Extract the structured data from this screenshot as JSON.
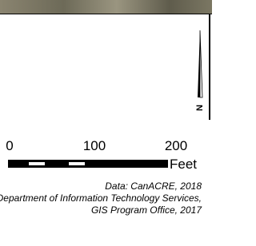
{
  "north_arrow": {
    "label": "N"
  },
  "scale_bar": {
    "ticks": [
      0,
      100,
      200
    ],
    "unit": "Feet"
  },
  "credits": [
    "Data: CanACRE, 2018",
    "Department of Information Technology Services,",
    "GIS Program Office, 2017"
  ]
}
